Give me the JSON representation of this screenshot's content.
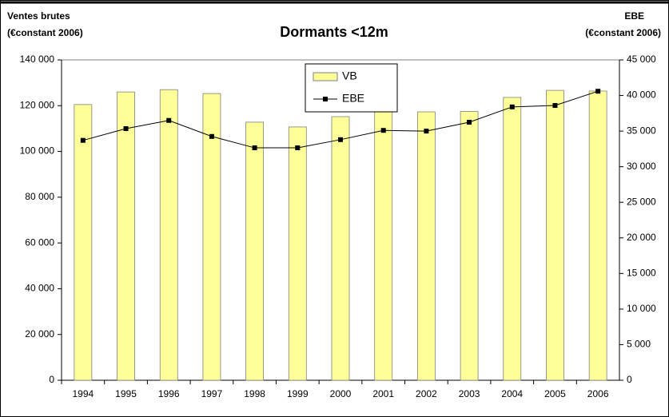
{
  "chart_data": {
    "type": "bar_line",
    "title": "Dormants <12m",
    "ylabel": [
      "Ventes brutes",
      "(€constant 2006)"
    ],
    "y2label": [
      "EBE",
      "(€constant 2006)"
    ],
    "categories": [
      "1994",
      "1995",
      "1996",
      "1997",
      "1998",
      "1999",
      "2000",
      "2001",
      "2002",
      "2003",
      "2004",
      "2005",
      "2006"
    ],
    "series": [
      {
        "name": "VB",
        "type": "bar",
        "color": "#ffff99",
        "values": [
          120500,
          126000,
          127000,
          125300,
          112800,
          110700,
          115200,
          118000,
          117300,
          117500,
          123600,
          126700,
          126400
        ]
      },
      {
        "name": "EBE",
        "type": "line",
        "axis": "y2",
        "color": "#000000",
        "values": [
          33700,
          35350,
          36500,
          34250,
          32650,
          32650,
          33800,
          35100,
          35000,
          36250,
          38400,
          38600,
          40600
        ]
      }
    ],
    "ylim": [
      0,
      140000
    ],
    "yticks": [
      0,
      {
        "value": 20000,
        "label": "20 000"
      },
      {
        "value": 40000,
        "label": "40 000"
      },
      {
        "value": 60000,
        "label": "60 000"
      },
      {
        "value": 80000,
        "label": "80 000"
      },
      {
        "value": 100000,
        "label": "100 000"
      },
      {
        "value": 120000,
        "label": "120 000"
      },
      {
        "value": 140000,
        "label": "140 000"
      }
    ],
    "y2lim": [
      0,
      45000
    ],
    "y2ticks": [
      0,
      {
        "value": 5000,
        "label": "5 000"
      },
      {
        "value": 10000,
        "label": "10 000"
      },
      {
        "value": 15000,
        "label": "15 000"
      },
      {
        "value": 20000,
        "label": "20 000"
      },
      {
        "value": 25000,
        "label": "25 000"
      },
      {
        "value": 30000,
        "label": "30 000"
      },
      {
        "value": 35000,
        "label": "35 000"
      },
      {
        "value": 40000,
        "label": "40 000"
      },
      {
        "value": 45000,
        "label": "45 000"
      }
    ],
    "grid": false,
    "legend": "top"
  }
}
